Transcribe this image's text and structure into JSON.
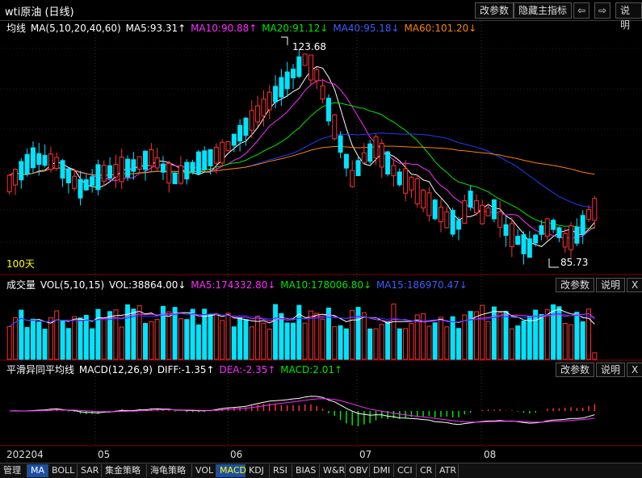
{
  "window": {
    "title": "wti原油 (日线)",
    "buttons": {
      "params": "改参数",
      "hide": "隐藏主指标",
      "prev": "⇦",
      "next": "⇨",
      "help": "说明"
    }
  },
  "price_panel": {
    "legend": {
      "name": "均线",
      "params": "MA(5,10,20,40,60)",
      "ma5": "MA5:93.31↑",
      "ma10": "MA10:90.88↑",
      "ma20": "MA20:91.12↓",
      "ma40": "MA40:95.18↓",
      "ma60": "MA60:101.20↓"
    },
    "high_label": "123.68",
    "low_label": "85.73",
    "period_label": "100天"
  },
  "volume_panel": {
    "legend": {
      "name": "成交量",
      "params": "VOL(5,10,15)",
      "vol": "VOL:38864.00↓",
      "ma5": "MA5:174332.80↓",
      "ma10": "MA10:178006.80↓",
      "ma15": "MA15:186970.47↓"
    },
    "buttons": {
      "params": "改参数",
      "help": "说明",
      "close": "X"
    }
  },
  "macd_panel": {
    "legend": {
      "name": "平滑异同平均线",
      "params": "MACD(12,26,9)",
      "diff": "DIFF:-1.35↑",
      "dea": "DEA:-2.35↑",
      "macd": "MACD:2.01↑"
    },
    "buttons": {
      "params": "改参数",
      "help": "说明",
      "close": "X"
    }
  },
  "date_axis": {
    "labels": [
      "202204",
      "05",
      "06",
      "07",
      "08"
    ]
  },
  "tabs": [
    "管理",
    "MA",
    "BOLL",
    "SAR",
    "集金策略",
    "海龟策略",
    "VOL",
    "MACD",
    "KDJ",
    "RSI",
    "BIAS",
    "W&R",
    "OBV",
    "DMI",
    "CCI",
    "CR",
    "ATR"
  ],
  "colors": {
    "up": "#ff3232",
    "down": "#00e4ff",
    "ma5": "#ffffff",
    "ma10": "#ff2bff",
    "ma20": "#00e600",
    "ma40": "#1e3cff",
    "ma60": "#ff8000",
    "macd_pos": "#ff3232",
    "macd_neg": "#00e600"
  },
  "chart_data": [
    {
      "type": "candlestick",
      "title": "wti原油 (日线)",
      "ylim": [
        82,
        128
      ],
      "max_label": 123.68,
      "min_label": 85.73,
      "x_ticks": [
        "202204",
        "05",
        "06",
        "07",
        "08"
      ],
      "series_names": [
        "MA5",
        "MA10",
        "MA20",
        "MA40",
        "MA60"
      ]
    },
    {
      "type": "bar",
      "title": "成交量",
      "series_names": [
        "VOL",
        "MA5",
        "MA10",
        "MA15"
      ]
    },
    {
      "type": "bar",
      "title": "MACD(12,26,9)",
      "series_names": [
        "DIFF",
        "DEA",
        "MACD"
      ]
    }
  ]
}
